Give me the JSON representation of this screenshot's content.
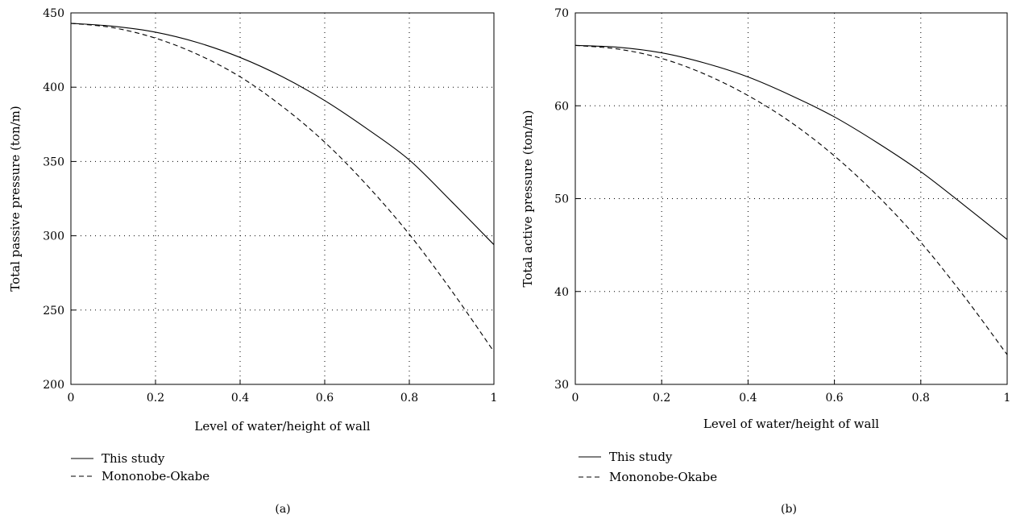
{
  "chart_data": [
    {
      "type": "line",
      "panel_label": "(a)",
      "xlabel": "Level of water/height of wall",
      "ylabel": "Total passive pressure (ton/m)",
      "xlim": [
        0,
        1
      ],
      "ylim": [
        200,
        450
      ],
      "xticks": [
        0,
        0.2,
        0.4,
        0.6,
        0.8,
        1
      ],
      "xtick_labels": [
        "0",
        "0.2",
        "0.4",
        "0.6",
        "0.8",
        "1"
      ],
      "yticks": [
        200,
        250,
        300,
        350,
        400,
        450
      ],
      "ytick_labels": [
        "200",
        "250",
        "300",
        "350",
        "400",
        "450"
      ],
      "grid": true,
      "legend_position": "below-left",
      "series": [
        {
          "name": "This study",
          "style": "solid",
          "x": [
            0,
            0.1,
            0.2,
            0.3,
            0.4,
            0.5,
            0.6,
            0.7,
            0.8,
            0.9,
            1.0
          ],
          "y": [
            443,
            441,
            437,
            430,
            420,
            407,
            391,
            372,
            351,
            323,
            294
          ]
        },
        {
          "name": "Mononobe-Okabe",
          "style": "dashed",
          "x": [
            0,
            0.1,
            0.2,
            0.3,
            0.4,
            0.5,
            0.6,
            0.7,
            0.8,
            0.9,
            1.0
          ],
          "y": [
            443,
            440,
            433,
            422,
            407,
            387,
            363,
            334,
            301,
            263,
            222
          ]
        }
      ]
    },
    {
      "type": "line",
      "panel_label": "(b)",
      "xlabel": "Level of water/height of wall",
      "ylabel": "Total active pressure (ton/m)",
      "xlim": [
        0,
        1
      ],
      "ylim": [
        30,
        70
      ],
      "xticks": [
        0,
        0.2,
        0.4,
        0.6,
        0.8,
        1
      ],
      "xtick_labels": [
        "0",
        "0.2",
        "0.4",
        "0.6",
        "0.8",
        "1"
      ],
      "yticks": [
        30,
        40,
        50,
        60,
        70
      ],
      "ytick_labels": [
        "30",
        "40",
        "50",
        "60",
        "70"
      ],
      "grid": true,
      "legend_position": "below-left",
      "series": [
        {
          "name": "This study",
          "style": "solid",
          "x": [
            0,
            0.1,
            0.2,
            0.3,
            0.4,
            0.5,
            0.6,
            0.7,
            0.8,
            0.9,
            1.0
          ],
          "y": [
            66.5,
            66.3,
            65.7,
            64.6,
            63.1,
            61.1,
            58.8,
            56.0,
            52.9,
            49.3,
            45.6
          ]
        },
        {
          "name": "Mononobe-Okabe",
          "style": "dashed",
          "x": [
            0,
            0.1,
            0.2,
            0.3,
            0.4,
            0.5,
            0.6,
            0.7,
            0.8,
            0.9,
            1.0
          ],
          "y": [
            66.5,
            66.1,
            65.1,
            63.4,
            61.1,
            58.2,
            54.6,
            50.3,
            45.3,
            39.5,
            33.2
          ]
        }
      ]
    }
  ]
}
